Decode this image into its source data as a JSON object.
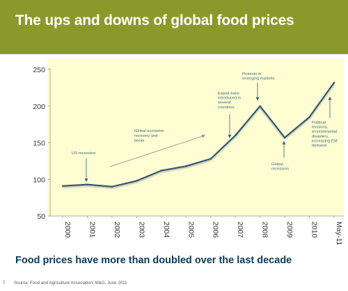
{
  "slide": {
    "title": "The ups and downs of global food prices",
    "caption": "Food prices have more than doubled over the last decade",
    "source": "Source: Food and Agriculture Association, M&G, June 2011",
    "page_number": "2"
  },
  "colors": {
    "header_bg": "#8a9a2a",
    "plot_bg": "#fffdd2",
    "line": "#27507a",
    "annotation_text": "#3a6a7a",
    "arrow": "#2f6070",
    "caption": "#0c3a5a"
  },
  "chart_data": {
    "type": "line",
    "title": "",
    "xlabel": "",
    "ylabel": "",
    "categories": [
      "2000",
      "2001",
      "2002",
      "2003",
      "2004",
      "2005",
      "2006",
      "2007",
      "2008",
      "2009",
      "2010",
      "May-11"
    ],
    "values": [
      91,
      93,
      90,
      98,
      112,
      118,
      128,
      160,
      200,
      157,
      185,
      232
    ],
    "ylim": [
      50,
      250
    ],
    "yticks": [
      50,
      100,
      150,
      200,
      250
    ],
    "grid": false,
    "legend": "none",
    "annotations": [
      {
        "text": "US recession",
        "lines": [
          "US recession"
        ]
      },
      {
        "text": "Global economic recovery and boom",
        "lines": [
          "Global economic",
          "recovery and",
          "boom"
        ]
      },
      {
        "text": "Export bans introduced in several countries",
        "lines": [
          "Export bans",
          "introduced in",
          "several",
          "countries"
        ]
      },
      {
        "text": "Protests in emerging markets",
        "lines": [
          "Protests in",
          "emerging markets"
        ]
      },
      {
        "text": "Global recession",
        "lines": [
          "Global",
          "recession"
        ]
      },
      {
        "text": "Political tensions, environmental disasters, increasing EM demand",
        "lines": [
          "Political",
          "tensions,",
          "environmental",
          "disasters,",
          "increasing EM",
          "demand"
        ]
      }
    ]
  }
}
